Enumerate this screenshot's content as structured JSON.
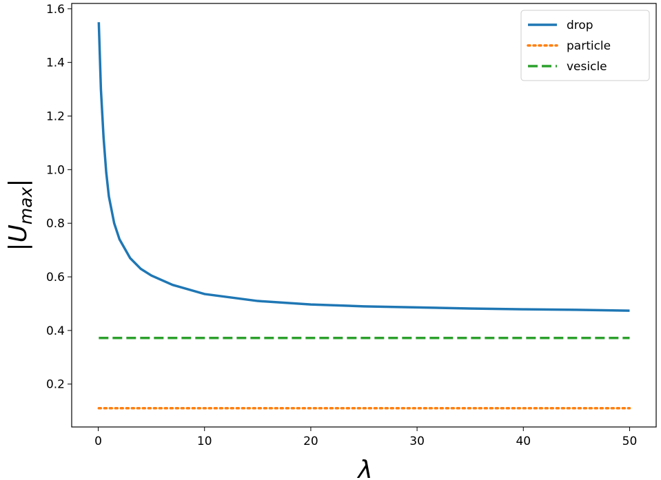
{
  "chart_data": {
    "type": "line",
    "xlabel": "λ",
    "ylabel": {
      "base": "|U",
      "sub": "max",
      "end": "|"
    },
    "x": [
      0.05,
      0.25,
      0.5,
      0.75,
      1,
      1.5,
      2,
      3,
      4,
      5,
      7,
      10,
      15,
      20,
      25,
      30,
      35,
      40,
      45,
      50
    ],
    "series": [
      {
        "name": "drop",
        "color": "#1f77b4",
        "dash": "solid",
        "values": [
          1.55,
          1.3,
          1.12,
          0.99,
          0.9,
          0.8,
          0.74,
          0.67,
          0.63,
          0.605,
          0.57,
          0.536,
          0.51,
          0.497,
          0.49,
          0.486,
          0.482,
          0.479,
          0.477,
          0.474
        ]
      },
      {
        "name": "particle",
        "color": "#ff7f0e",
        "dash": "dotted",
        "values": [
          0.11,
          0.11,
          0.11,
          0.11,
          0.11,
          0.11,
          0.11,
          0.11,
          0.11,
          0.11,
          0.11,
          0.11,
          0.11,
          0.11,
          0.11,
          0.11,
          0.11,
          0.11,
          0.11,
          0.11
        ]
      },
      {
        "name": "vesicle",
        "color": "#2ca02c",
        "dash": "dashed",
        "values": [
          0.372,
          0.372,
          0.372,
          0.372,
          0.372,
          0.372,
          0.372,
          0.372,
          0.372,
          0.372,
          0.372,
          0.372,
          0.372,
          0.372,
          0.372,
          0.372,
          0.372,
          0.372,
          0.372,
          0.372
        ]
      }
    ],
    "xlim": [
      -2.5,
      52.5
    ],
    "xticks": [
      0,
      10,
      20,
      30,
      40,
      50
    ],
    "ylim": [
      0.04,
      1.62
    ],
    "yticks": [
      {
        "value": 0.2,
        "label": "0.2"
      },
      {
        "value": 0.4,
        "label": "0.4"
      },
      {
        "value": 0.6,
        "label": "0.6"
      },
      {
        "value": 0.8,
        "label": "0.8"
      },
      {
        "value": 1.0,
        "label": "1.0"
      },
      {
        "value": 1.2,
        "label": "1.2"
      },
      {
        "value": 1.4,
        "label": "1.4"
      },
      {
        "value": 1.6,
        "label": "1.6"
      }
    ],
    "legend": "upper right",
    "grid": false
  }
}
